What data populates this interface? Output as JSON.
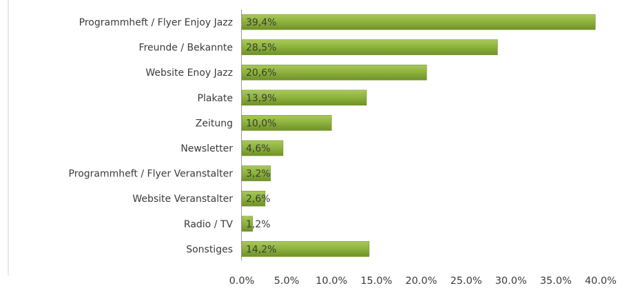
{
  "chart_data": {
    "type": "bar",
    "orientation": "horizontal",
    "categories": [
      "Programmheft / Flyer Enjoy Jazz",
      "Freunde / Bekannte",
      "Website Enoy Jazz",
      "Plakate",
      "Zeitung",
      "Newsletter",
      "Programmheft / Flyer Veranstalter",
      "Website Veranstalter",
      "Radio / TV",
      "Sonstiges"
    ],
    "values": [
      39.4,
      28.5,
      20.6,
      13.9,
      10.0,
      4.6,
      3.2,
      2.6,
      1.2,
      14.2
    ],
    "value_labels": [
      "39,4%",
      "28,5%",
      "20,6%",
      "13,9%",
      "10,0%",
      "4,6%",
      "3,2%",
      "2,6%",
      "1,2%",
      "14,2%"
    ],
    "x_ticks": [
      "0.0%",
      "5.0%",
      "10.0%",
      "15.0%",
      "20.0%",
      "25.0%",
      "30.0%",
      "35.0%",
      "40.0%"
    ],
    "xlim": [
      0,
      40
    ],
    "title": "",
    "xlabel": "",
    "ylabel": "",
    "grid": false,
    "legend": "none",
    "colors": {
      "bar_fill": "#8fb43e",
      "bar_highlight": "#a9c85a",
      "bar_edge": "#6f9128",
      "axis": "#9a9a9a",
      "text": "#3a3a3a"
    }
  }
}
